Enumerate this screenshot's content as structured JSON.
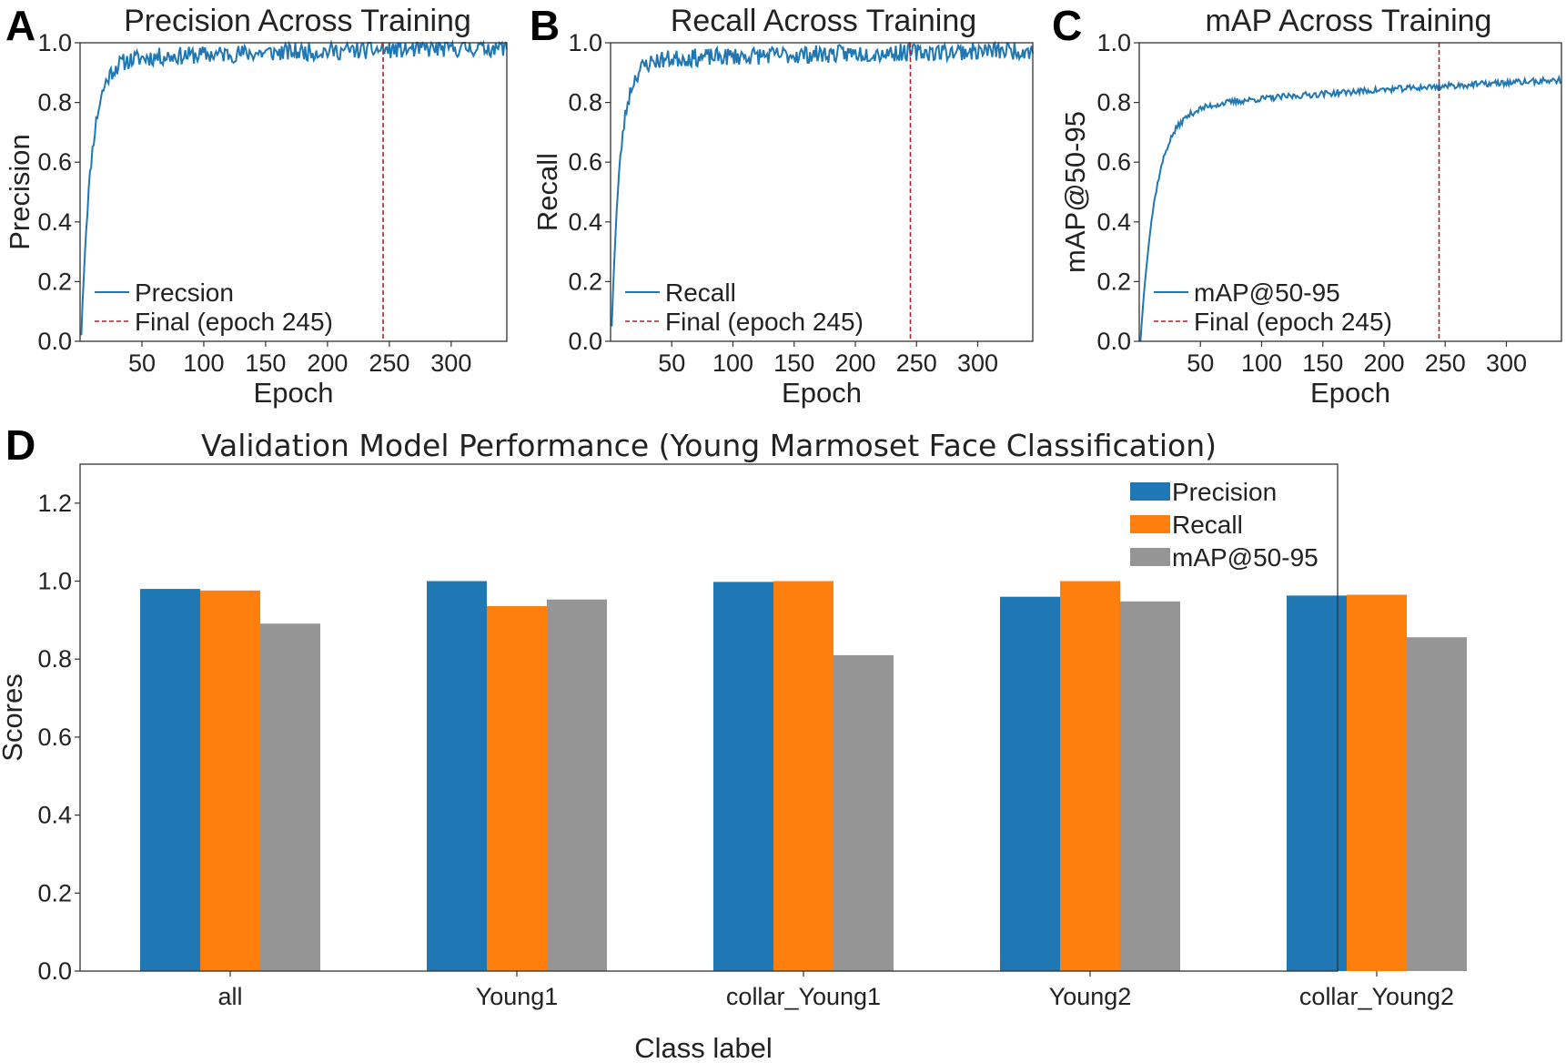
{
  "figure": {
    "panels": [
      "A",
      "B",
      "C",
      "D"
    ]
  },
  "colors": {
    "line": "#1f77b4",
    "final_marker": "#b22222",
    "precision": "#1f77b4",
    "recall": "#ff7f0e",
    "map": "#959595"
  },
  "chart_data": [
    {
      "type": "line",
      "panel": "A",
      "title": "Precision Across Training",
      "xlabel": "Epoch",
      "ylabel": "Precision",
      "xlim": [
        0,
        345
      ],
      "ylim": [
        0.0,
        1.0
      ],
      "xticks": [
        50,
        100,
        150,
        200,
        250,
        300
      ],
      "yticks": [
        0.0,
        0.2,
        0.4,
        0.6,
        0.8,
        1.0
      ],
      "series": [
        {
          "name": "Precsion",
          "start": 0.02,
          "rise": 8,
          "plateau_start": 0.93,
          "plateau_end": 0.985,
          "noise": 0.02,
          "n_epochs": 345,
          "seed": 11
        }
      ],
      "final_epoch": 245,
      "legend": [
        "Precsion",
        "Final (epoch 245)"
      ],
      "legend_loc": "lower-left"
    },
    {
      "type": "line",
      "panel": "B",
      "title": "Recall Across Training",
      "xlabel": "Epoch",
      "ylabel": "Recall",
      "xlim": [
        0,
        345
      ],
      "ylim": [
        0.0,
        1.0
      ],
      "xticks": [
        50,
        100,
        150,
        200,
        250,
        300
      ],
      "yticks": [
        0.0,
        0.2,
        0.4,
        0.6,
        0.8,
        1.0
      ],
      "series": [
        {
          "name": "Recall",
          "start": 0.05,
          "rise": 7,
          "plateau_start": 0.93,
          "plateau_end": 0.975,
          "noise": 0.02,
          "n_epochs": 345,
          "seed": 23
        }
      ],
      "final_epoch": 245,
      "legend": [
        "Recall",
        "Final (epoch 245)"
      ],
      "legend_loc": "lower-left"
    },
    {
      "type": "line",
      "panel": "C",
      "title": "mAP Across Training",
      "xlabel": "Epoch",
      "ylabel": "mAP@50-95",
      "xlim": [
        0,
        345
      ],
      "ylim": [
        0.0,
        1.0
      ],
      "xticks": [
        50,
        100,
        150,
        200,
        250,
        300
      ],
      "yticks": [
        0.0,
        0.2,
        0.4,
        0.6,
        0.8,
        1.0
      ],
      "series": [
        {
          "name": "mAP@50-95",
          "start": 0.0,
          "rise": 12,
          "plateau_start": 0.74,
          "plateau_end": 0.875,
          "noise": 0.007,
          "n_epochs": 345,
          "seed": 37
        }
      ],
      "final_epoch": 245,
      "legend": [
        "mAP@50-95",
        "Final (epoch 245)"
      ],
      "legend_loc": "lower-left"
    },
    {
      "type": "bar",
      "panel": "D",
      "title": "Validation Model Performance (Young Marmoset Face Classification)",
      "xlabel": "Class label",
      "ylabel": "Scores",
      "ylim": [
        0.0,
        1.3
      ],
      "yticks": [
        "0.0",
        "0.2",
        "0.4",
        "0.6",
        "0.8",
        "1.0",
        "1.2"
      ],
      "categories": [
        "all",
        "Young1",
        "collar_Young1",
        "Young2",
        "collar_Young2"
      ],
      "series": [
        {
          "name": "Precision",
          "values": [
            0.98,
            1.0,
            0.998,
            0.96,
            0.963
          ]
        },
        {
          "name": "Recall",
          "values": [
            0.976,
            0.936,
            1.0,
            1.0,
            0.965
          ]
        },
        {
          "name": "mAP@50-95",
          "values": [
            0.891,
            0.953,
            0.81,
            0.948,
            0.856
          ]
        }
      ],
      "legend_loc": "top-right"
    }
  ]
}
